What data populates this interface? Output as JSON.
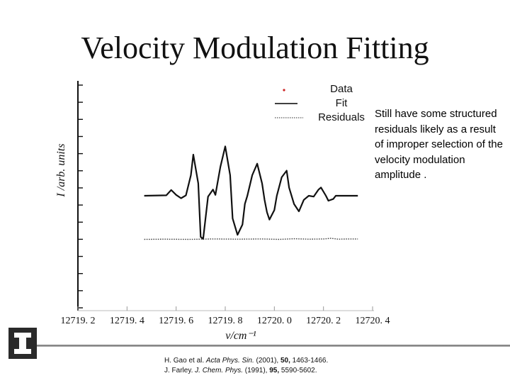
{
  "slide": {
    "title": "Velocity Modulation Fitting",
    "caption": "Still have some structured residuals likely as a result of improper selection of the velocity modulation amplitude .",
    "references": [
      {
        "authors": "H. Gao et al.",
        "journal": "Acta Phys. Sin.",
        "year": "(2001),",
        "volume": "50,",
        "pages": "1463-1466."
      },
      {
        "authors": "J. Farley.",
        "journal": "J. Chem. Phys.",
        "year": "(1991),",
        "volume": "95,",
        "pages": "5590-5602."
      }
    ],
    "logo_icon": "illinois-block-i-icon"
  },
  "chart_data": {
    "type": "line",
    "title": "",
    "xlabel": "ν/cm⁻¹",
    "ylabel": "I /arb. units",
    "xlim": [
      12719.2,
      12720.4
    ],
    "ylim": [
      -1.4,
      1.4
    ],
    "x_ticks": [
      "12719. 2",
      "12719. 4",
      "12719. 6",
      "12719. 8",
      "12720. 0",
      "12720. 2",
      "12720. 4"
    ],
    "grid": false,
    "legend": {
      "placement": "top-right",
      "entries": [
        {
          "label": "Data",
          "style": "dot",
          "color": "#cc2222"
        },
        {
          "label": "Fit",
          "style": "solid",
          "color": "#000000"
        },
        {
          "label": "Residuals",
          "style": "dotted",
          "color": "#555555"
        }
      ]
    },
    "series": [
      {
        "name": "Fit",
        "style": "solid",
        "x": [
          12719.47,
          12719.56,
          12719.58,
          12719.6,
          12719.62,
          12719.64,
          12719.66,
          12719.67,
          12719.69,
          12719.7,
          12719.71,
          12719.73,
          12719.75,
          12719.76,
          12719.78,
          12719.8,
          12719.82,
          12719.83,
          12719.85,
          12719.87,
          12719.88,
          12719.89,
          12719.91,
          12719.93,
          12719.95,
          12719.96,
          12719.97,
          12719.98,
          12720.0,
          12720.01,
          12720.03,
          12720.05,
          12720.06,
          12720.08,
          12720.1,
          12720.12,
          12720.14,
          12720.16,
          12720.18,
          12720.19,
          12720.21,
          12720.22,
          12720.24,
          12720.25,
          12720.27,
          12720.3,
          12720.34
        ],
        "values": [
          0,
          0.01,
          0.14,
          0.02,
          -0.06,
          0.01,
          0.5,
          1.0,
          0.3,
          -1.0,
          -1.05,
          -0.02,
          0.15,
          0.02,
          0.7,
          1.2,
          0.5,
          -0.55,
          -0.95,
          -0.7,
          -0.2,
          0.0,
          0.5,
          0.78,
          0.3,
          -0.1,
          -0.4,
          -0.58,
          -0.35,
          0.0,
          0.45,
          0.61,
          0.2,
          -0.2,
          -0.38,
          -0.1,
          0.0,
          -0.02,
          0.15,
          0.2,
          0.0,
          -0.12,
          -0.08,
          0.0,
          0.0,
          0.0,
          0.0
        ]
      },
      {
        "name": "Residuals",
        "style": "dotted",
        "x": [
          12719.47,
          12719.55,
          12719.65,
          12719.75,
          12719.85,
          12719.95,
          12720.02,
          12720.08,
          12720.14,
          12720.2,
          12720.23,
          12720.26,
          12720.3,
          12720.34
        ],
        "values": [
          -1.06,
          -1.055,
          -1.06,
          -1.05,
          -1.055,
          -1.05,
          -1.06,
          -1.045,
          -1.055,
          -1.05,
          -1.035,
          -1.055,
          -1.05,
          -1.05
        ]
      }
    ]
  }
}
